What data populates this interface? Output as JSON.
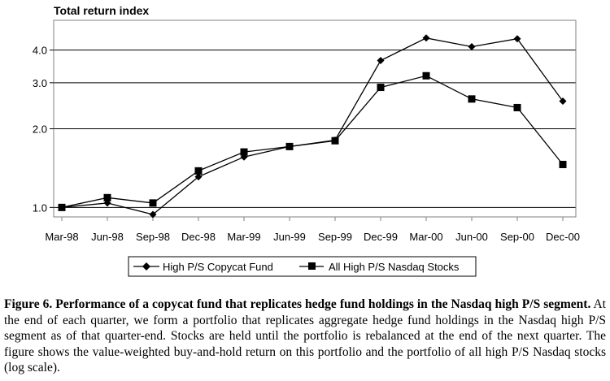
{
  "chart_data": {
    "type": "line",
    "ylabel": "Total return index",
    "xlabel": "",
    "y_scale": "log",
    "ylim": [
      0.92,
      5.2
    ],
    "y_ticks": [
      "1.0",
      "2.0",
      "3.0",
      "4.0"
    ],
    "grid": "horizontal",
    "legend_position": "bottom-center",
    "categories": [
      "Mar-98",
      "Jun-98",
      "Sep-98",
      "Dec-98",
      "Mar-99",
      "Jun-99",
      "Sep-99",
      "Dec-99",
      "Mar-00",
      "Jun-00",
      "Sep-00",
      "Dec-00"
    ],
    "series": [
      {
        "name": "High P/S Copycat Fund",
        "marker": "diamond",
        "values": [
          1.0,
          1.04,
          0.94,
          1.31,
          1.56,
          1.71,
          1.81,
          3.65,
          4.45,
          4.12,
          4.42,
          2.55
        ]
      },
      {
        "name": "All High P/S Nasdaq Stocks",
        "marker": "square",
        "values": [
          1.0,
          1.09,
          1.04,
          1.38,
          1.63,
          1.71,
          1.8,
          2.88,
          3.19,
          2.6,
          2.41,
          1.46
        ]
      }
    ]
  },
  "caption": {
    "title": "Figure 6.  Performance of a copycat fund that replicates hedge fund holdings in the Nasdaq high P/S segment.",
    "body": " At the end of each quarter, we form a portfolio that replicates aggregate hedge fund holdings in the Nasdaq high P/S segment as of that quarter-end. Stocks are held until the portfolio is rebalanced at the end of the next quarter. The figure shows the value-weighted buy-and-hold return on this portfolio and the portfolio of all high P/S Nasdaq stocks (log scale)."
  }
}
